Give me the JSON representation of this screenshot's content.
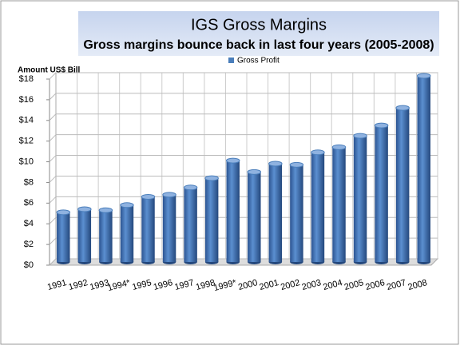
{
  "chart_data": {
    "type": "bar",
    "title": "IGS Gross Margins",
    "subtitle": "Gross margins bounce back in last four years (2005-2008)",
    "y_label": "Amount US$ Bill",
    "legend": "top",
    "grid": true,
    "categories": [
      "1991",
      "1992",
      "1993",
      "1994*",
      "1995",
      "1996",
      "1997",
      "1998",
      "1999*",
      "2000",
      "2001",
      "2002",
      "2003",
      "2004",
      "2005",
      "2006",
      "2007",
      "2008"
    ],
    "series": [
      {
        "name": "Gross Profit",
        "color": "#4a7ebb",
        "values": [
          4.8,
          5.1,
          5.0,
          5.5,
          6.3,
          6.5,
          7.2,
          8.1,
          9.8,
          8.7,
          9.5,
          9.4,
          10.6,
          11.1,
          12.2,
          13.2,
          14.9,
          18.0
        ]
      }
    ],
    "ylim": [
      0,
      18
    ],
    "yticks": [
      {
        "value": 0,
        "label": "$0"
      },
      {
        "value": 2,
        "label": "$2"
      },
      {
        "value": 4,
        "label": "$4"
      },
      {
        "value": 6,
        "label": "$6"
      },
      {
        "value": 8,
        "label": "$8"
      },
      {
        "value": 10,
        "label": "$10"
      },
      {
        "value": 12,
        "label": "$12"
      },
      {
        "value": 14,
        "label": "$14"
      },
      {
        "value": 16,
        "label": "$16"
      },
      {
        "value": 18,
        "label": "$18"
      }
    ]
  }
}
